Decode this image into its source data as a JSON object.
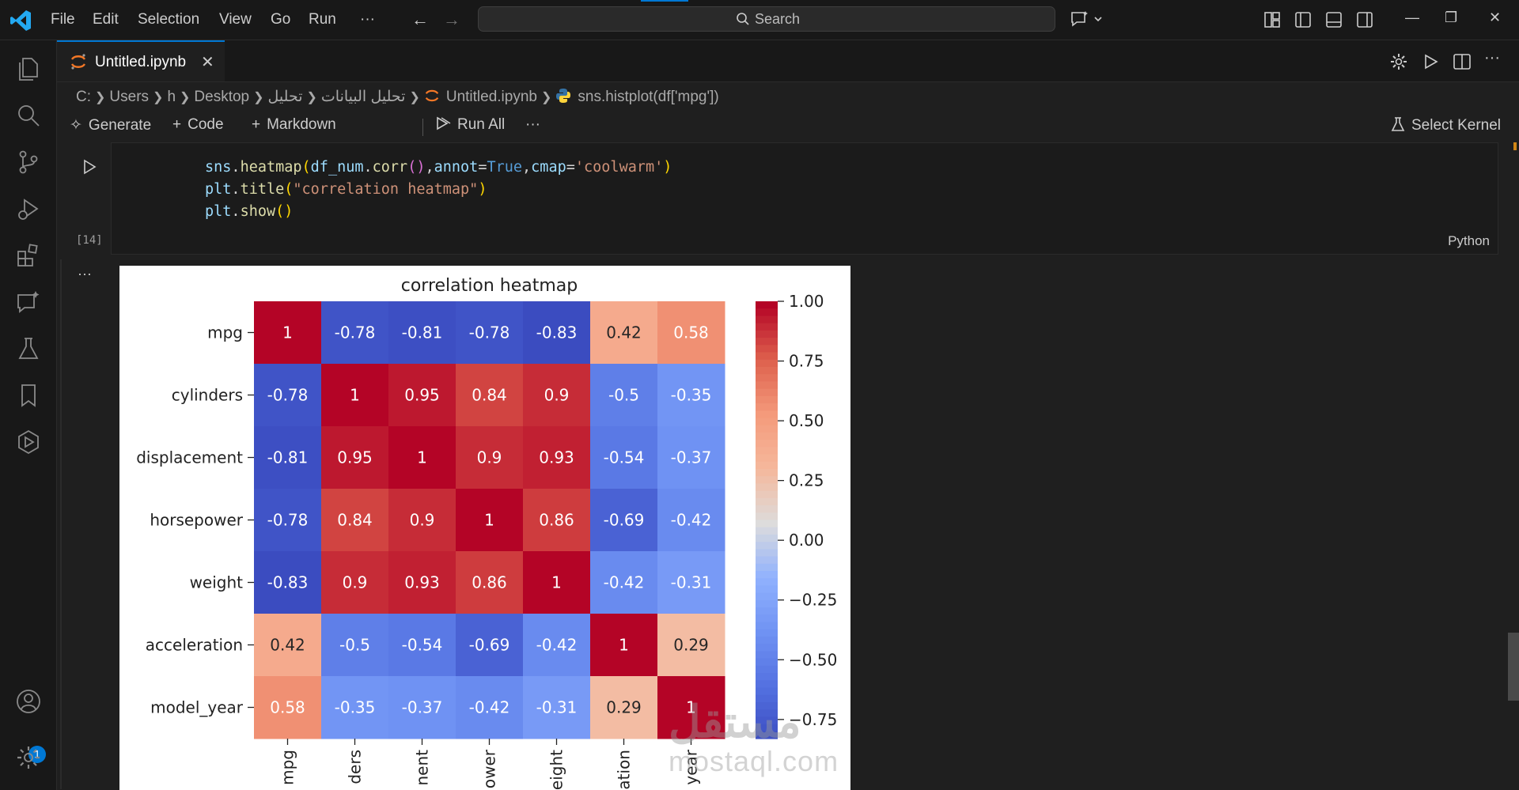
{
  "menu": [
    "File",
    "Edit",
    "Selection",
    "View",
    "Go",
    "Run",
    "···"
  ],
  "search": {
    "label": "Search"
  },
  "tab": {
    "label": "Untitled.ipynb"
  },
  "breadcrumb": [
    "C:",
    "Users",
    "h",
    "Desktop",
    "تحليل",
    "تحليل البيانات",
    "Untitled.ipynb",
    "sns.histplot(df['mpg'])"
  ],
  "toolbar": {
    "generate": "Generate",
    "code": "Code",
    "markdown": "Markdown",
    "run_all": "Run All",
    "more": "···",
    "select_kernel": "Select Kernel"
  },
  "cell": {
    "exec_count": "[14]",
    "language": "Python",
    "output_more": "···"
  },
  "account_badge": "1",
  "watermark": {
    "arabic": "مستقل",
    "latin": "mostaql.com"
  },
  "colors": {
    "accent": "#0078d4",
    "background": "#1f1f1f",
    "cmap_low": "#3b4cc0",
    "cmap_high": "#b40426"
  },
  "chart_data": {
    "type": "heatmap",
    "title": "correlation heatmap",
    "row_labels": [
      "mpg",
      "cylinders",
      "displacement",
      "horsepower",
      "weight",
      "acceleration",
      "model_year"
    ],
    "col_labels_visible": [
      "mpg",
      "ders",
      "nent",
      "ower",
      "eight",
      "ation",
      "year"
    ],
    "values": [
      [
        1,
        -0.78,
        -0.81,
        -0.78,
        -0.83,
        0.42,
        0.58
      ],
      [
        -0.78,
        1,
        0.95,
        0.84,
        0.9,
        -0.5,
        -0.35
      ],
      [
        -0.81,
        0.95,
        1,
        0.9,
        0.93,
        -0.54,
        -0.37
      ],
      [
        -0.78,
        0.84,
        0.9,
        1,
        0.86,
        -0.69,
        -0.42
      ],
      [
        -0.83,
        0.9,
        0.93,
        0.86,
        1,
        -0.42,
        -0.31
      ],
      [
        0.42,
        -0.5,
        -0.54,
        -0.69,
        -0.42,
        1,
        0.29
      ],
      [
        0.58,
        -0.35,
        -0.37,
        -0.42,
        -0.31,
        0.29,
        1
      ]
    ],
    "annotations": [
      [
        "1",
        "-0.78",
        "-0.81",
        "-0.78",
        "-0.83",
        "0.42",
        "0.58"
      ],
      [
        "-0.78",
        "1",
        "0.95",
        "0.84",
        "0.9",
        "-0.5",
        "-0.35"
      ],
      [
        "-0.81",
        "0.95",
        "1",
        "0.9",
        "0.93",
        "-0.54",
        "-0.37"
      ],
      [
        "-0.78",
        "0.84",
        "0.9",
        "1",
        "0.86",
        "-0.69",
        "-0.42"
      ],
      [
        "-0.83",
        "0.9",
        "0.93",
        "0.86",
        "1",
        "-0.42",
        "-0.31"
      ],
      [
        "0.42",
        "-0.5",
        "-0.54",
        "-0.69",
        "-0.42",
        "1",
        "0.29"
      ],
      [
        "0.58",
        "-0.35",
        "-0.37",
        "-0.42",
        "-0.31",
        "0.29",
        "1"
      ]
    ],
    "colorbar_ticks": [
      1.0,
      0.75,
      0.5,
      0.25,
      0.0,
      -0.25,
      -0.5,
      -0.75
    ],
    "colorbar_tick_labels": [
      "1.00",
      "0.75",
      "0.50",
      "0.25",
      "0.00",
      "−0.25",
      "−0.50",
      "−0.75"
    ],
    "colorbar_range": [
      -0.83,
      1.0
    ],
    "cmap": "coolwarm"
  }
}
